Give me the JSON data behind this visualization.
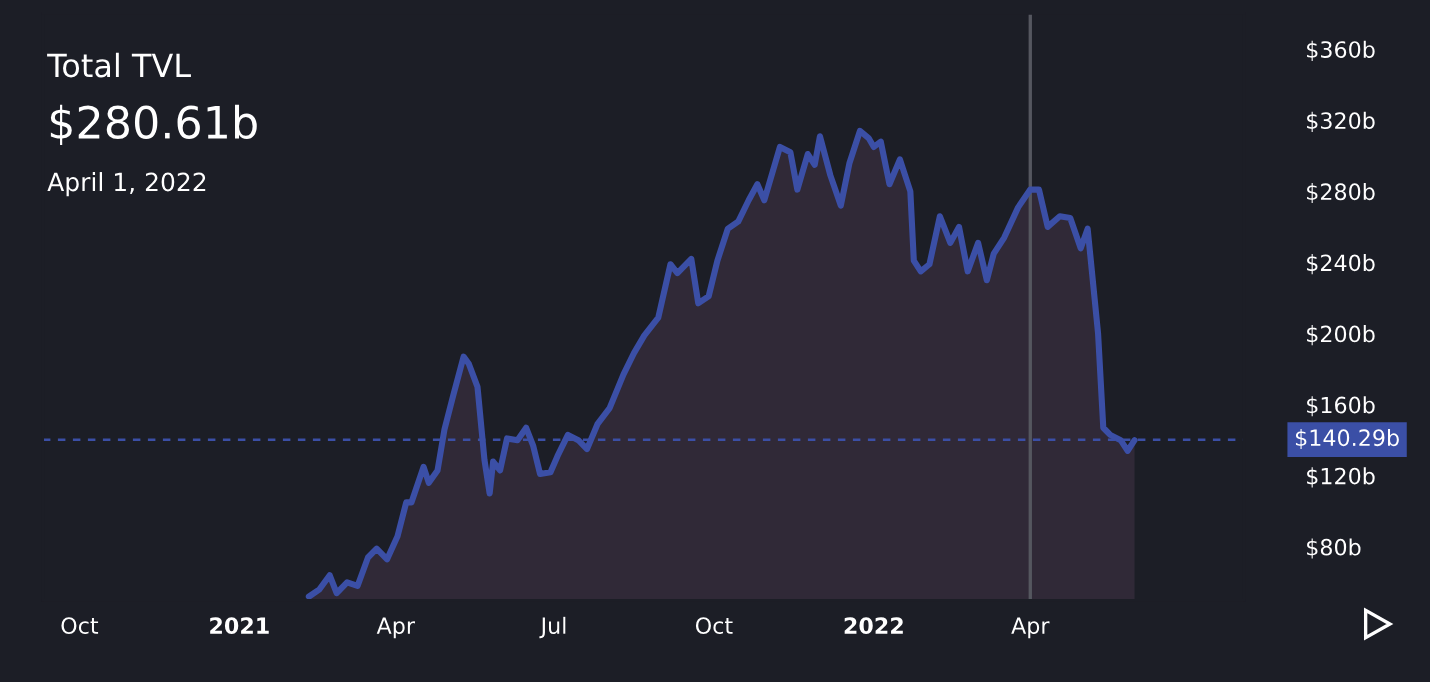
{
  "chart_data": {
    "type": "area",
    "title": "Total TVL",
    "annotations": [
      "$280.61b",
      "April 1, 2022"
    ],
    "x": [
      "2021-02-10",
      "2021-02-16",
      "2021-02-22",
      "2021-02-26",
      "2021-03-04",
      "2021-03-10",
      "2021-03-16",
      "2021-03-21",
      "2021-03-27",
      "2021-04-02",
      "2021-04-07",
      "2021-04-10",
      "2021-04-17",
      "2021-04-20",
      "2021-04-25",
      "2021-04-29",
      "2021-05-04",
      "2021-05-10",
      "2021-05-13",
      "2021-05-18",
      "2021-05-22",
      "2021-05-25",
      "2021-05-27",
      "2021-05-31",
      "2021-06-04",
      "2021-06-10",
      "2021-06-15",
      "2021-06-19",
      "2021-06-23",
      "2021-06-29",
      "2021-07-03",
      "2021-07-09",
      "2021-07-15",
      "2021-07-20",
      "2021-07-26",
      "2021-08-02",
      "2021-08-10",
      "2021-08-16",
      "2021-08-22",
      "2021-08-30",
      "2021-09-06",
      "2021-09-10",
      "2021-09-18",
      "2021-09-22",
      "2021-09-28",
      "2021-10-03",
      "2021-10-09",
      "2021-10-15",
      "2021-10-21",
      "2021-10-26",
      "2021-10-30",
      "2021-11-08",
      "2021-11-14",
      "2021-11-18",
      "2021-11-24",
      "2021-11-28",
      "2021-12-01",
      "2021-12-07",
      "2021-12-13",
      "2021-12-18",
      "2021-12-24",
      "2021-12-29",
      "2022-01-01",
      "2022-01-05",
      "2022-01-10",
      "2022-01-16",
      "2022-01-22",
      "2022-01-24",
      "2022-01-28",
      "2022-02-02",
      "2022-02-08",
      "2022-02-14",
      "2022-02-19",
      "2022-02-24",
      "2022-03-02",
      "2022-03-07",
      "2022-03-11",
      "2022-03-17",
      "2022-03-25",
      "2022-04-01",
      "2022-04-06",
      "2022-04-11",
      "2022-04-18",
      "2022-04-24",
      "2022-04-30",
      "2022-05-04",
      "2022-05-10",
      "2022-05-13",
      "2022-05-17",
      "2022-05-23",
      "2022-05-27",
      "2022-05-31"
    ],
    "series": [
      {
        "color": "#3b4fa6",
        "values": [
          52,
          56,
          64,
          54,
          60,
          58,
          74,
          79,
          73,
          86,
          105,
          105,
          125,
          116,
          123,
          146,
          165,
          187,
          183,
          170,
          129,
          110,
          128,
          123,
          141,
          140,
          147,
          137,
          121,
          122,
          131,
          143,
          140,
          135,
          149,
          158,
          177,
          189,
          199,
          209,
          239,
          234,
          242,
          217,
          221,
          241,
          259,
          263,
          275,
          284,
          275,
          305,
          302,
          281,
          301,
          295,
          311,
          289,
          272,
          296,
          314,
          310,
          305,
          308,
          284,
          298,
          280,
          241,
          235,
          239,
          266,
          251,
          260,
          235,
          251,
          230,
          245,
          254,
          271,
          281,
          281,
          260,
          266,
          265,
          248,
          259,
          200,
          147,
          143,
          140,
          134,
          140
        ]
      }
    ],
    "xlim": [
      "2020-09-10",
      "2022-08-02"
    ],
    "xticks": [
      {
        "value": "2020-10-01",
        "label": "Oct"
      },
      {
        "value": "2021-01-01",
        "label": "2021"
      },
      {
        "value": "2021-04-01",
        "label": "Apr"
      },
      {
        "value": "2021-07-01",
        "label": "Jul"
      },
      {
        "value": "2021-10-01",
        "label": "Oct"
      },
      {
        "value": "2022-01-01",
        "label": "2022"
      },
      {
        "value": "2022-04-01",
        "label": "Apr"
      }
    ],
    "ylim": [
      50,
      380
    ],
    "yticks": [
      {
        "value": 80,
        "label": "$80b"
      },
      {
        "value": 120,
        "label": "$120b"
      },
      {
        "value": 160,
        "label": "$160b"
      },
      {
        "value": 200,
        "label": "$200b"
      },
      {
        "value": 240,
        "label": "$240b"
      },
      {
        "value": 280,
        "label": "$280b"
      },
      {
        "value": 320,
        "label": "$320b"
      },
      {
        "value": 360,
        "label": "$360b"
      }
    ],
    "ref_lines": [
      {
        "axis": "y",
        "value": 140.29,
        "label": "$140.29b",
        "color": "#3b4fa6",
        "line_style": "dashed"
      },
      {
        "axis": "x",
        "value": "2022-04-01",
        "color": "#55575f",
        "line_style": "solid"
      }
    ],
    "grid": false
  }
}
